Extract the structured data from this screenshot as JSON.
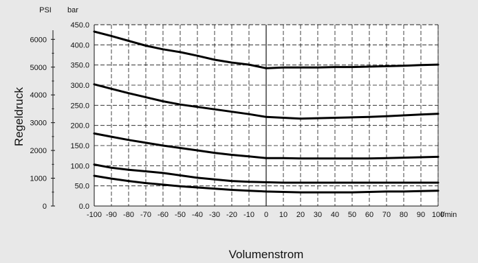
{
  "chart_data": {
    "type": "line",
    "xlabel": "Volumenstrom",
    "ylabel": "Regeldruck",
    "x_unit": "l/min",
    "y_unit_primary": "bar",
    "y_unit_secondary": "PSI",
    "xlim": [
      -100,
      100
    ],
    "ylim": [
      0,
      450
    ],
    "x_ticks": [
      "-100",
      "-90",
      "-80",
      "-70",
      "-60",
      "-50",
      "-40",
      "-30",
      "-20",
      "-10",
      "0",
      "10",
      "20",
      "30",
      "40",
      "50",
      "60",
      "70",
      "80",
      "90",
      "100"
    ],
    "y_ticks": [
      "0.0",
      "50.0",
      "100.0",
      "150.0",
      "200.0",
      "250.0",
      "300.0",
      "350.0",
      "400.0",
      "450.0"
    ],
    "psi_ticks": [
      "0",
      "1000",
      "2000",
      "3000",
      "4000",
      "5000",
      "6000"
    ],
    "psi_values": [
      0,
      1000,
      2000,
      3000,
      4000,
      5000,
      6000
    ],
    "grid": true,
    "series": [
      {
        "x": [
          -100,
          -90,
          -80,
          -70,
          -60,
          -50,
          -40,
          -30,
          -20,
          -10,
          0,
          10,
          20,
          30,
          40,
          50,
          60,
          70,
          80,
          90,
          100
        ],
        "y": [
          433,
          422,
          410,
          398,
          389,
          382,
          373,
          363,
          356,
          351,
          342,
          344,
          344,
          344,
          345,
          345,
          346,
          347,
          348,
          350,
          351
        ]
      },
      {
        "x": [
          -100,
          -90,
          -80,
          -70,
          -60,
          -50,
          -40,
          -30,
          -20,
          -10,
          0,
          10,
          20,
          30,
          40,
          50,
          60,
          70,
          80,
          90,
          100
        ],
        "y": [
          302,
          291,
          280,
          270,
          260,
          252,
          246,
          240,
          234,
          228,
          221,
          219,
          217,
          218,
          219,
          220,
          221,
          223,
          225,
          227,
          229
        ]
      },
      {
        "x": [
          -100,
          -90,
          -80,
          -70,
          -60,
          -50,
          -40,
          -30,
          -20,
          -10,
          0,
          10,
          20,
          30,
          40,
          50,
          60,
          70,
          80,
          90,
          100
        ],
        "y": [
          180,
          172,
          164,
          157,
          150,
          144,
          138,
          132,
          127,
          123,
          119,
          119,
          118,
          118,
          118,
          118,
          118,
          119,
          120,
          121,
          122
        ]
      },
      {
        "x": [
          -100,
          -90,
          -80,
          -70,
          -60,
          -50,
          -40,
          -30,
          -20,
          -10,
          0,
          10,
          20,
          30,
          40,
          50,
          60,
          70,
          80,
          90,
          100
        ],
        "y": [
          103,
          95,
          90,
          86,
          82,
          76,
          70,
          66,
          62,
          60,
          59,
          58,
          58,
          58,
          58,
          58,
          58,
          58,
          58,
          58,
          58
        ]
      },
      {
        "x": [
          -100,
          -90,
          -80,
          -70,
          -60,
          -50,
          -40,
          -30,
          -20,
          -10,
          0,
          10,
          20,
          30,
          40,
          50,
          60,
          70,
          80,
          90,
          100
        ],
        "y": [
          75,
          68,
          62,
          57,
          53,
          49,
          46,
          43,
          40,
          38,
          36,
          35,
          34,
          34,
          34,
          34,
          35,
          36,
          36,
          37,
          38
        ]
      }
    ]
  }
}
